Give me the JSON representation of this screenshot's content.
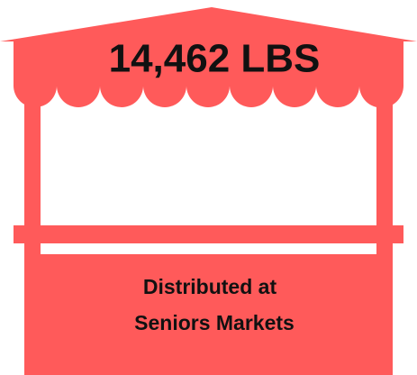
{
  "headline": "14,462 LBS",
  "caption": [
    "Distributed at",
    "Seniors Markets"
  ]
}
